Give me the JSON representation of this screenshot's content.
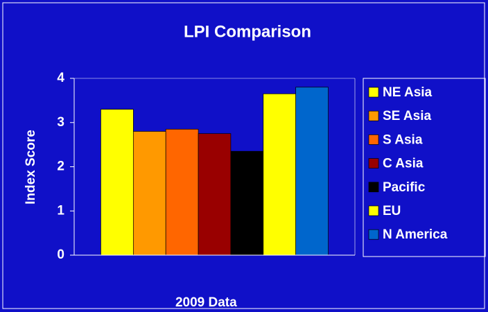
{
  "chart_data": {
    "type": "bar",
    "title": "LPI Comparison",
    "y_label": "Index Score",
    "categories": [
      "2009 Data"
    ],
    "series": [
      {
        "name": "NE Asia",
        "color": "#ffff00",
        "values": [
          3.3
        ]
      },
      {
        "name": "SE Asia",
        "color": "#ff9900",
        "values": [
          2.8
        ]
      },
      {
        "name": "S Asia",
        "color": "#ff6600",
        "values": [
          2.85
        ]
      },
      {
        "name": "C Asia",
        "color": "#990000",
        "values": [
          2.75
        ]
      },
      {
        "name": "Pacific",
        "color": "#000000",
        "values": [
          2.35
        ]
      },
      {
        "name": "EU",
        "color": "#ffff00",
        "values": [
          3.65
        ]
      },
      {
        "name": "N America",
        "color": "#0066cc",
        "values": [
          3.8
        ]
      }
    ],
    "ylim": [
      0,
      4
    ],
    "yticks": [
      0,
      1,
      2,
      3,
      4
    ],
    "legend": "right"
  }
}
